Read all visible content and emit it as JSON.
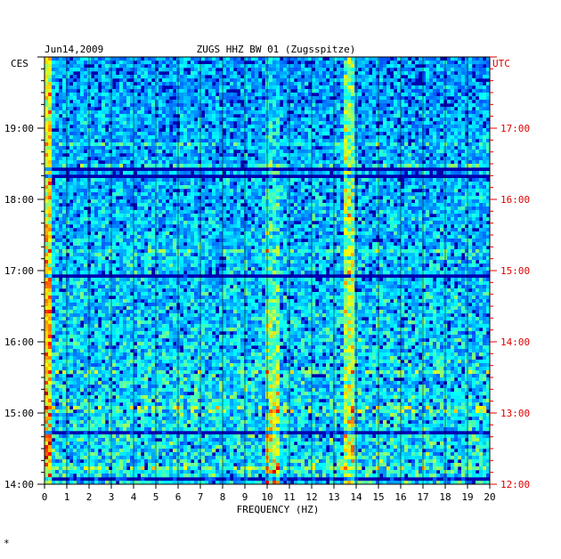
{
  "chart_data": {
    "type": "heatmap",
    "date_label": "Jun14,2009",
    "title": "ZUGS HHZ BW 01 (Zugsspitze)",
    "left_axis_label": "CES",
    "right_axis_label": "UTC",
    "xlabel": "FREQUENCY (HZ)",
    "xlim": [
      0,
      20
    ],
    "x_ticks": [
      0,
      1,
      2,
      3,
      4,
      5,
      6,
      7,
      8,
      9,
      10,
      11,
      12,
      13,
      14,
      15,
      16,
      17,
      18,
      19,
      20
    ],
    "time_range_ces": [
      "14:00",
      "20:00"
    ],
    "left_ticks": [
      "19:00",
      "18:00",
      "17:00",
      "16:00",
      "15:00",
      "14:00"
    ],
    "right_ticks": [
      "17:00",
      "16:00",
      "15:00",
      "14:00",
      "13:00",
      "12:00"
    ],
    "colors": {
      "low": "#0000b4",
      "mid": "#0050ff",
      "high": "#00dcff",
      "peak": "#ffff00",
      "max": "#ff0000",
      "utc_label": "#e00000"
    },
    "prominent_peaks_hz": [
      10.2,
      13.7,
      9.6
    ],
    "colorscale": "jet"
  },
  "footer_mark": "*"
}
